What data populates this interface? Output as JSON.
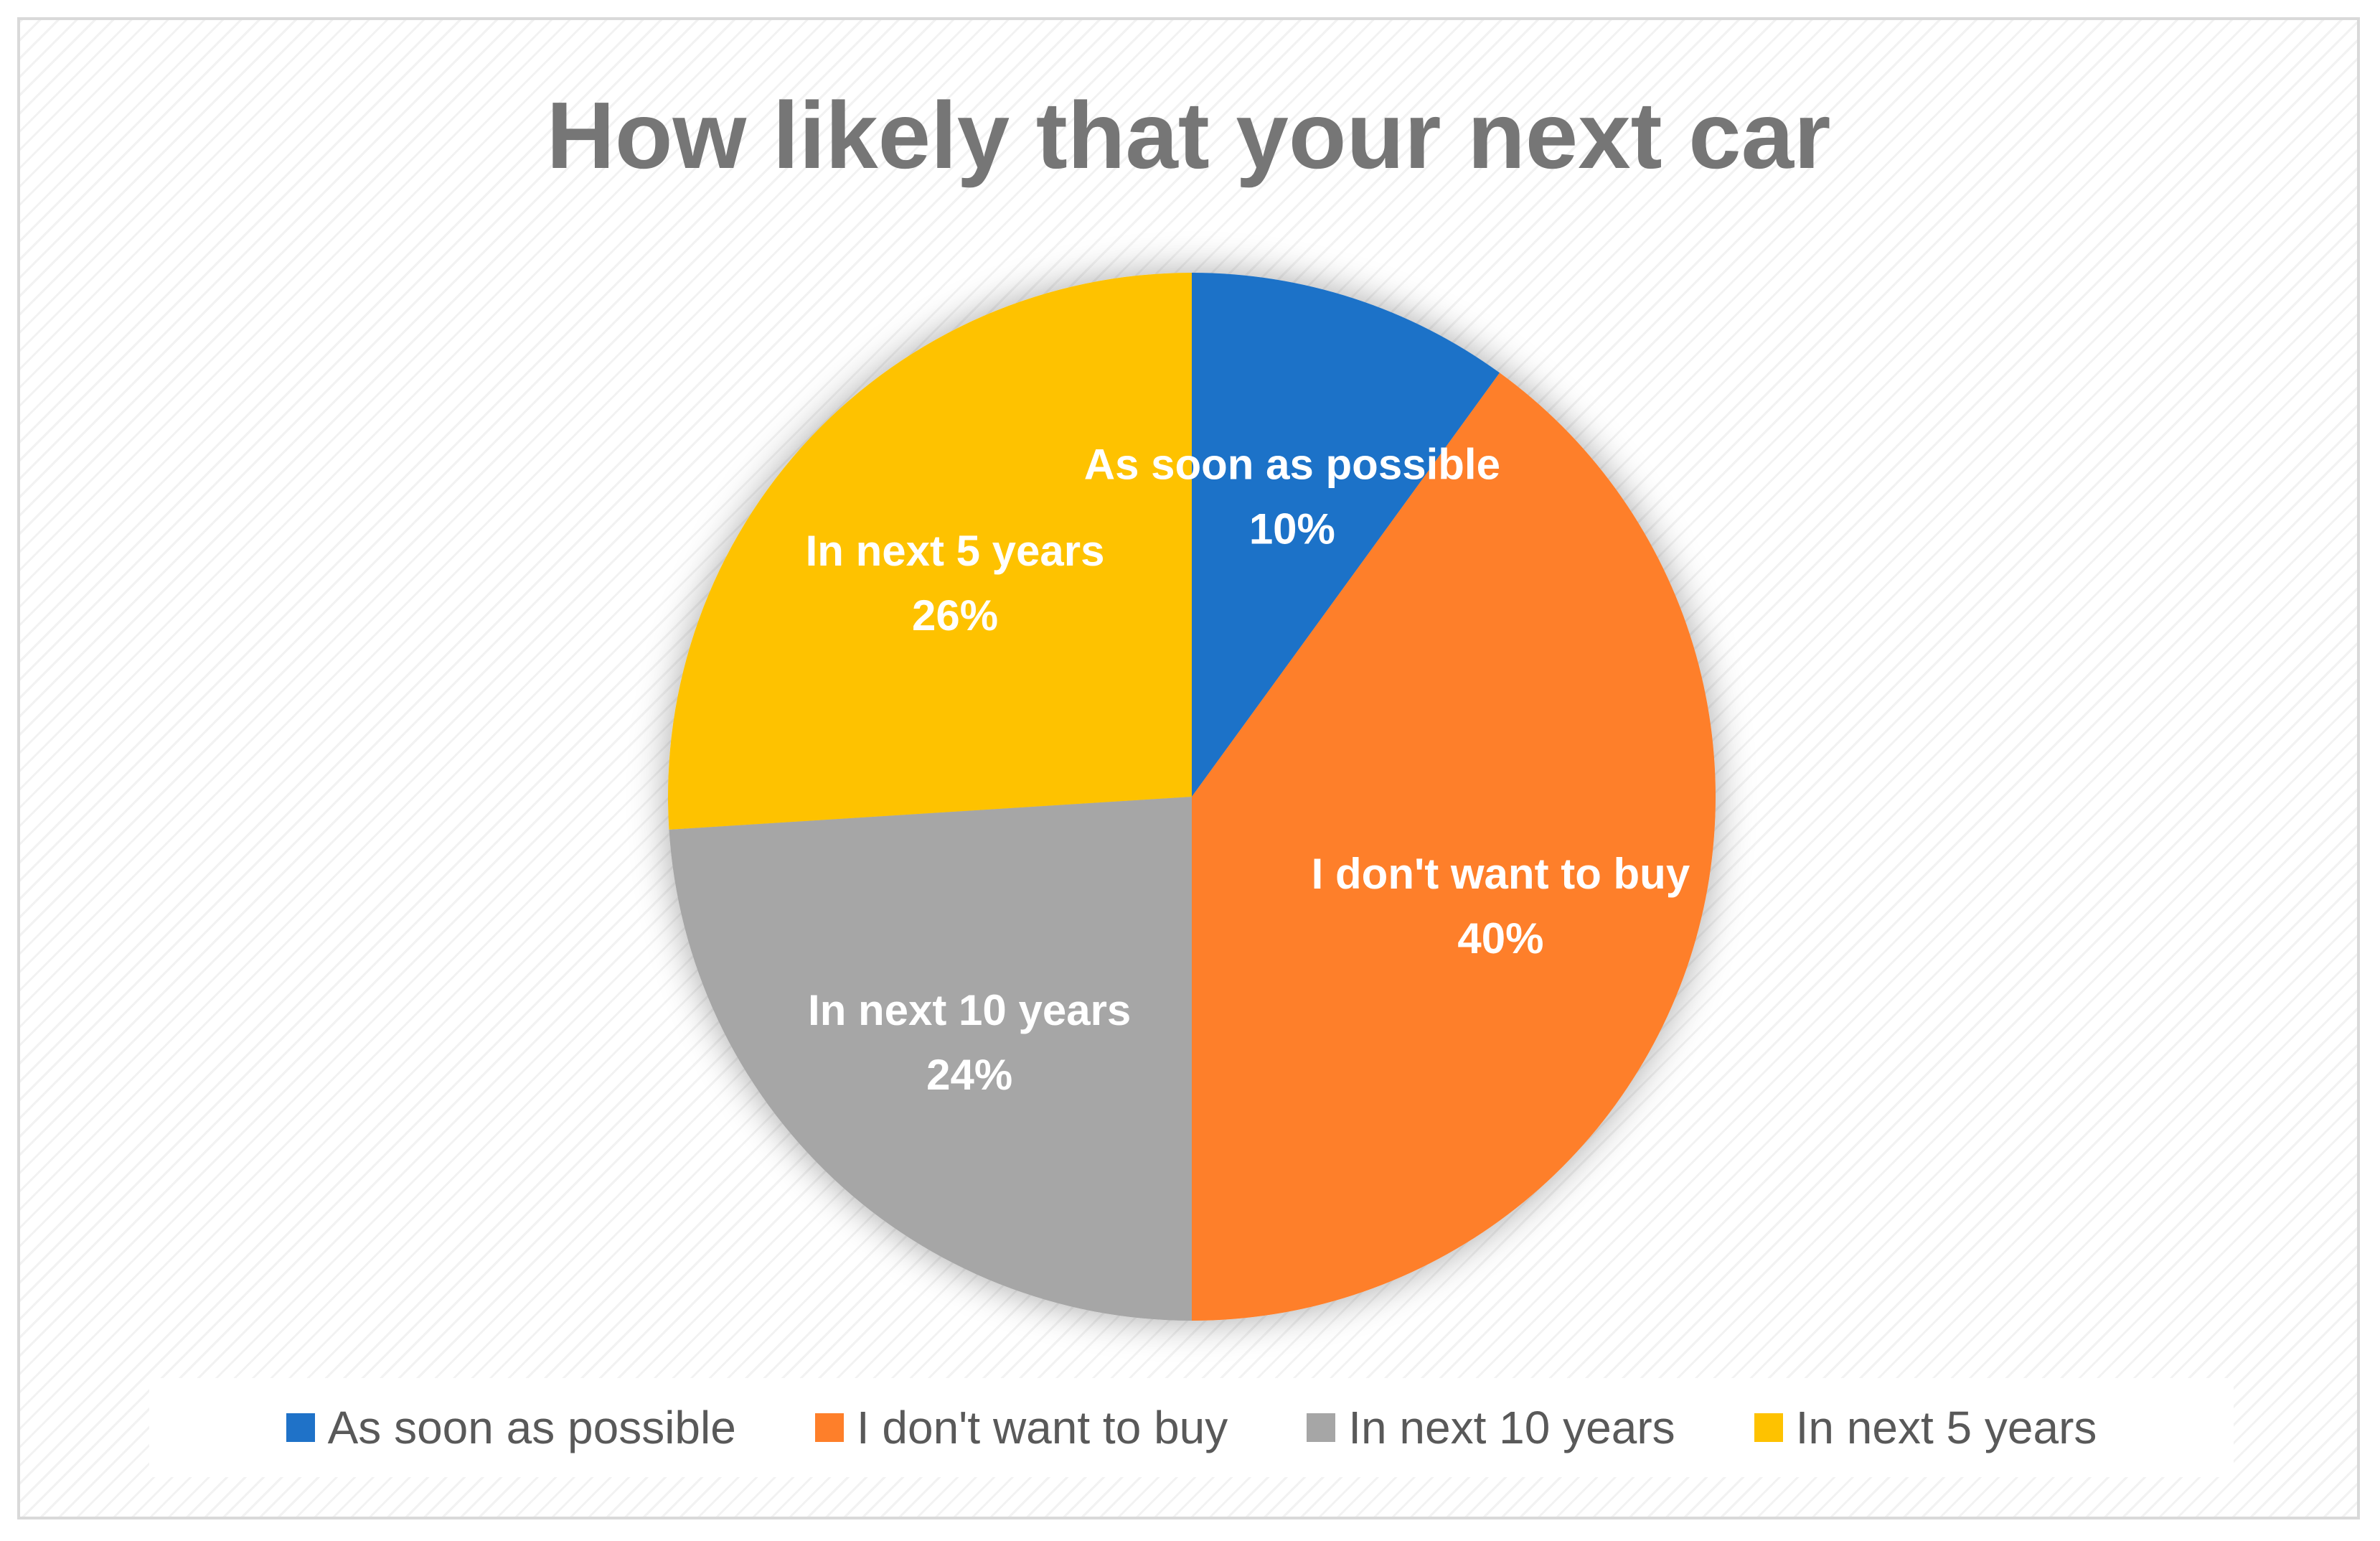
{
  "chart_data": {
    "type": "pie",
    "title": "How likely that your next car",
    "categories": [
      "As soon as possible",
      "I don't want to buy",
      "In next 10 years",
      "In next 5 years"
    ],
    "values": [
      10,
      40,
      24,
      26
    ],
    "value_labels": [
      "10%",
      "40%",
      "24%",
      "26%"
    ],
    "colors": [
      "#1f72c8",
      "#fe7f2a",
      "#a6a6a6",
      "#fec200"
    ],
    "legend_position": "bottom",
    "start_angle_deg": 0,
    "direction": "clockwise"
  }
}
